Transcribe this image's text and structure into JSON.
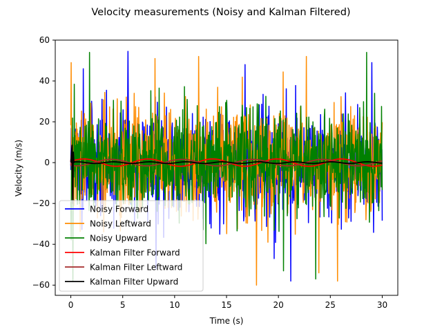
{
  "chart_data": {
    "type": "line",
    "title": "Velocity measurements (Noisy and Kalman Filtered)",
    "xlabel": "Time (s)",
    "ylabel": "Velocity (m/s)",
    "xlim": [
      -1.5,
      31.5
    ],
    "ylim": [
      -65,
      60
    ],
    "xticks": [
      0,
      5,
      10,
      15,
      20,
      25,
      30
    ],
    "yticks": [
      -60,
      -40,
      -20,
      0,
      20,
      40,
      60
    ],
    "grid": false,
    "legend_position": "lower-left",
    "series": [
      {
        "name": "Noisy Forward",
        "color": "#0000ff",
        "style": "noisy",
        "x_range": [
          0,
          30
        ],
        "samples": 900,
        "seed": 11,
        "std": 13,
        "max_abs": 55,
        "extremes": [
          [
            5.5,
            54.5
          ],
          [
            1.2,
            46
          ],
          [
            29.0,
            49
          ],
          [
            16.8,
            48
          ],
          [
            21.2,
            -58
          ],
          [
            8.2,
            -52
          ],
          [
            19.6,
            -47
          ]
        ]
      },
      {
        "name": "Noisy Leftward",
        "color": "#ff8c00",
        "style": "noisy",
        "x_range": [
          0,
          30
        ],
        "samples": 900,
        "seed": 29,
        "std": 13,
        "max_abs": 58,
        "extremes": [
          [
            0.05,
            49
          ],
          [
            12.3,
            52
          ],
          [
            22.7,
            52
          ],
          [
            8.1,
            51
          ],
          [
            17.9,
            -60
          ],
          [
            25.7,
            -58
          ],
          [
            23.9,
            -54
          ]
        ]
      },
      {
        "name": "Noisy Upward",
        "color": "#008000",
        "style": "noisy",
        "x_range": [
          0,
          30
        ],
        "samples": 900,
        "seed": 47,
        "std": 12,
        "max_abs": 57,
        "extremes": [
          [
            1.8,
            54
          ],
          [
            28.5,
            54
          ],
          [
            0.2,
            -58
          ],
          [
            23.6,
            -57
          ],
          [
            20.5,
            -53
          ]
        ]
      },
      {
        "name": "Kalman Filter Forward",
        "color": "#ff0000",
        "style": "smooth",
        "x_range": [
          0,
          30
        ],
        "wave": [
          [
            6.2,
            1.8,
            0.3
          ]
        ],
        "drift": 0,
        "startup_spike": [
          8,
          -18
        ]
      },
      {
        "name": "Kalman Filter Leftward",
        "color": "#a52a2a",
        "style": "smooth",
        "x_range": [
          0,
          30
        ],
        "wave": [
          [
            6.8,
            -1.6,
            1.1
          ]
        ],
        "drift": 0,
        "startup_spike": [
          7,
          -14
        ]
      },
      {
        "name": "Kalman Filter Upward",
        "color": "#000000",
        "style": "smooth",
        "x_range": [
          0,
          30
        ],
        "wave": [
          [
            3.5,
            0.4,
            0.5
          ]
        ],
        "drift": 0,
        "startup_spike": [
          8.5,
          -20
        ]
      }
    ]
  }
}
